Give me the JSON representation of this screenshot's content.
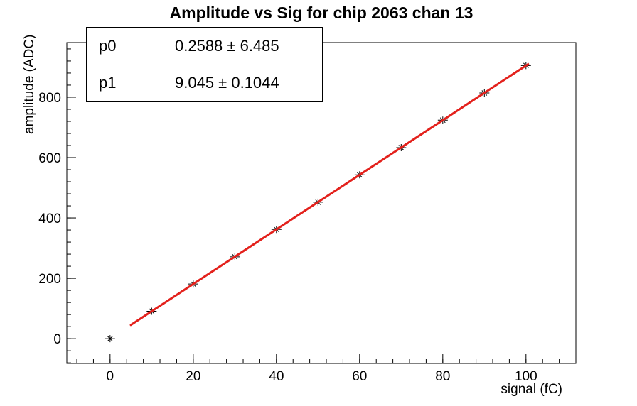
{
  "chart_data": {
    "type": "scatter",
    "title": "Amplitude vs Sig for chip 2063 chan 13",
    "xlabel": "signal (fC)",
    "ylabel": "amplitude (ADC)",
    "x": [
      0,
      10,
      20,
      30,
      40,
      50,
      60,
      70,
      80,
      90,
      100
    ],
    "y": [
      0,
      91,
      181,
      271,
      362,
      452,
      543,
      633,
      724,
      814,
      905
    ],
    "xlim": [
      -10.4,
      112.0
    ],
    "ylim": [
      -82,
      981
    ],
    "x_ticks": [
      0,
      20,
      40,
      60,
      80,
      100
    ],
    "y_ticks": [
      0,
      200,
      400,
      600,
      800
    ],
    "x_minor_step": 4,
    "y_minor_step": 40,
    "grid": false,
    "legend_position": "none",
    "marker_style": "asterisk-with-error-bars",
    "marker_color": "#000000",
    "axis_color": "#000000",
    "fit": {
      "type": "linear",
      "p0": 0.2588,
      "p1": 9.045,
      "x_start": 5,
      "x_end": 100.5,
      "color": "#e3211c",
      "line_width": 3
    }
  },
  "stats_box": {
    "rows": [
      {
        "name": "p0",
        "value": "0.2588 ± 6.485"
      },
      {
        "name": "p1",
        "value": "9.045 ± 0.1044"
      }
    ]
  }
}
